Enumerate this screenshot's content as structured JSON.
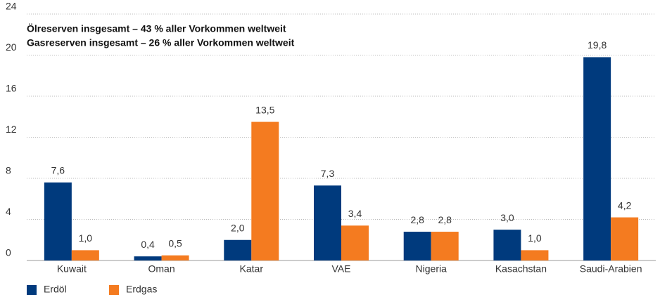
{
  "chart_data": {
    "type": "bar",
    "annotations": [
      "Ölreserven insgesamt – 43 % aller Vorkommen weltweit",
      "Gasreserven insgesamt – 26 % aller Vorkommen weltweit"
    ],
    "categories": [
      "Kuwait",
      "Oman",
      "Katar",
      "VAE",
      "Nigeria",
      "Kasachstan",
      "Saudi-Arabien"
    ],
    "series": [
      {
        "name": "Erdöl",
        "color": "#003a7d",
        "values": [
          7.6,
          0.4,
          2.0,
          7.3,
          2.8,
          3.0,
          19.8
        ],
        "value_labels": [
          "7,6",
          "0,4",
          "2,0",
          "7,3",
          "2,8",
          "3,0",
          "19,8"
        ]
      },
      {
        "name": "Erdgas",
        "color": "#f47b20",
        "values": [
          1.0,
          0.5,
          13.5,
          3.4,
          2.8,
          1.0,
          4.2
        ],
        "value_labels": [
          "1,0",
          "0,5",
          "13,5",
          "3,4",
          "2,8",
          "1,0",
          "4,2"
        ]
      }
    ],
    "ylim": [
      0,
      24
    ],
    "yticks": [
      0,
      4,
      8,
      12,
      16,
      20,
      24
    ],
    "grid": true
  }
}
